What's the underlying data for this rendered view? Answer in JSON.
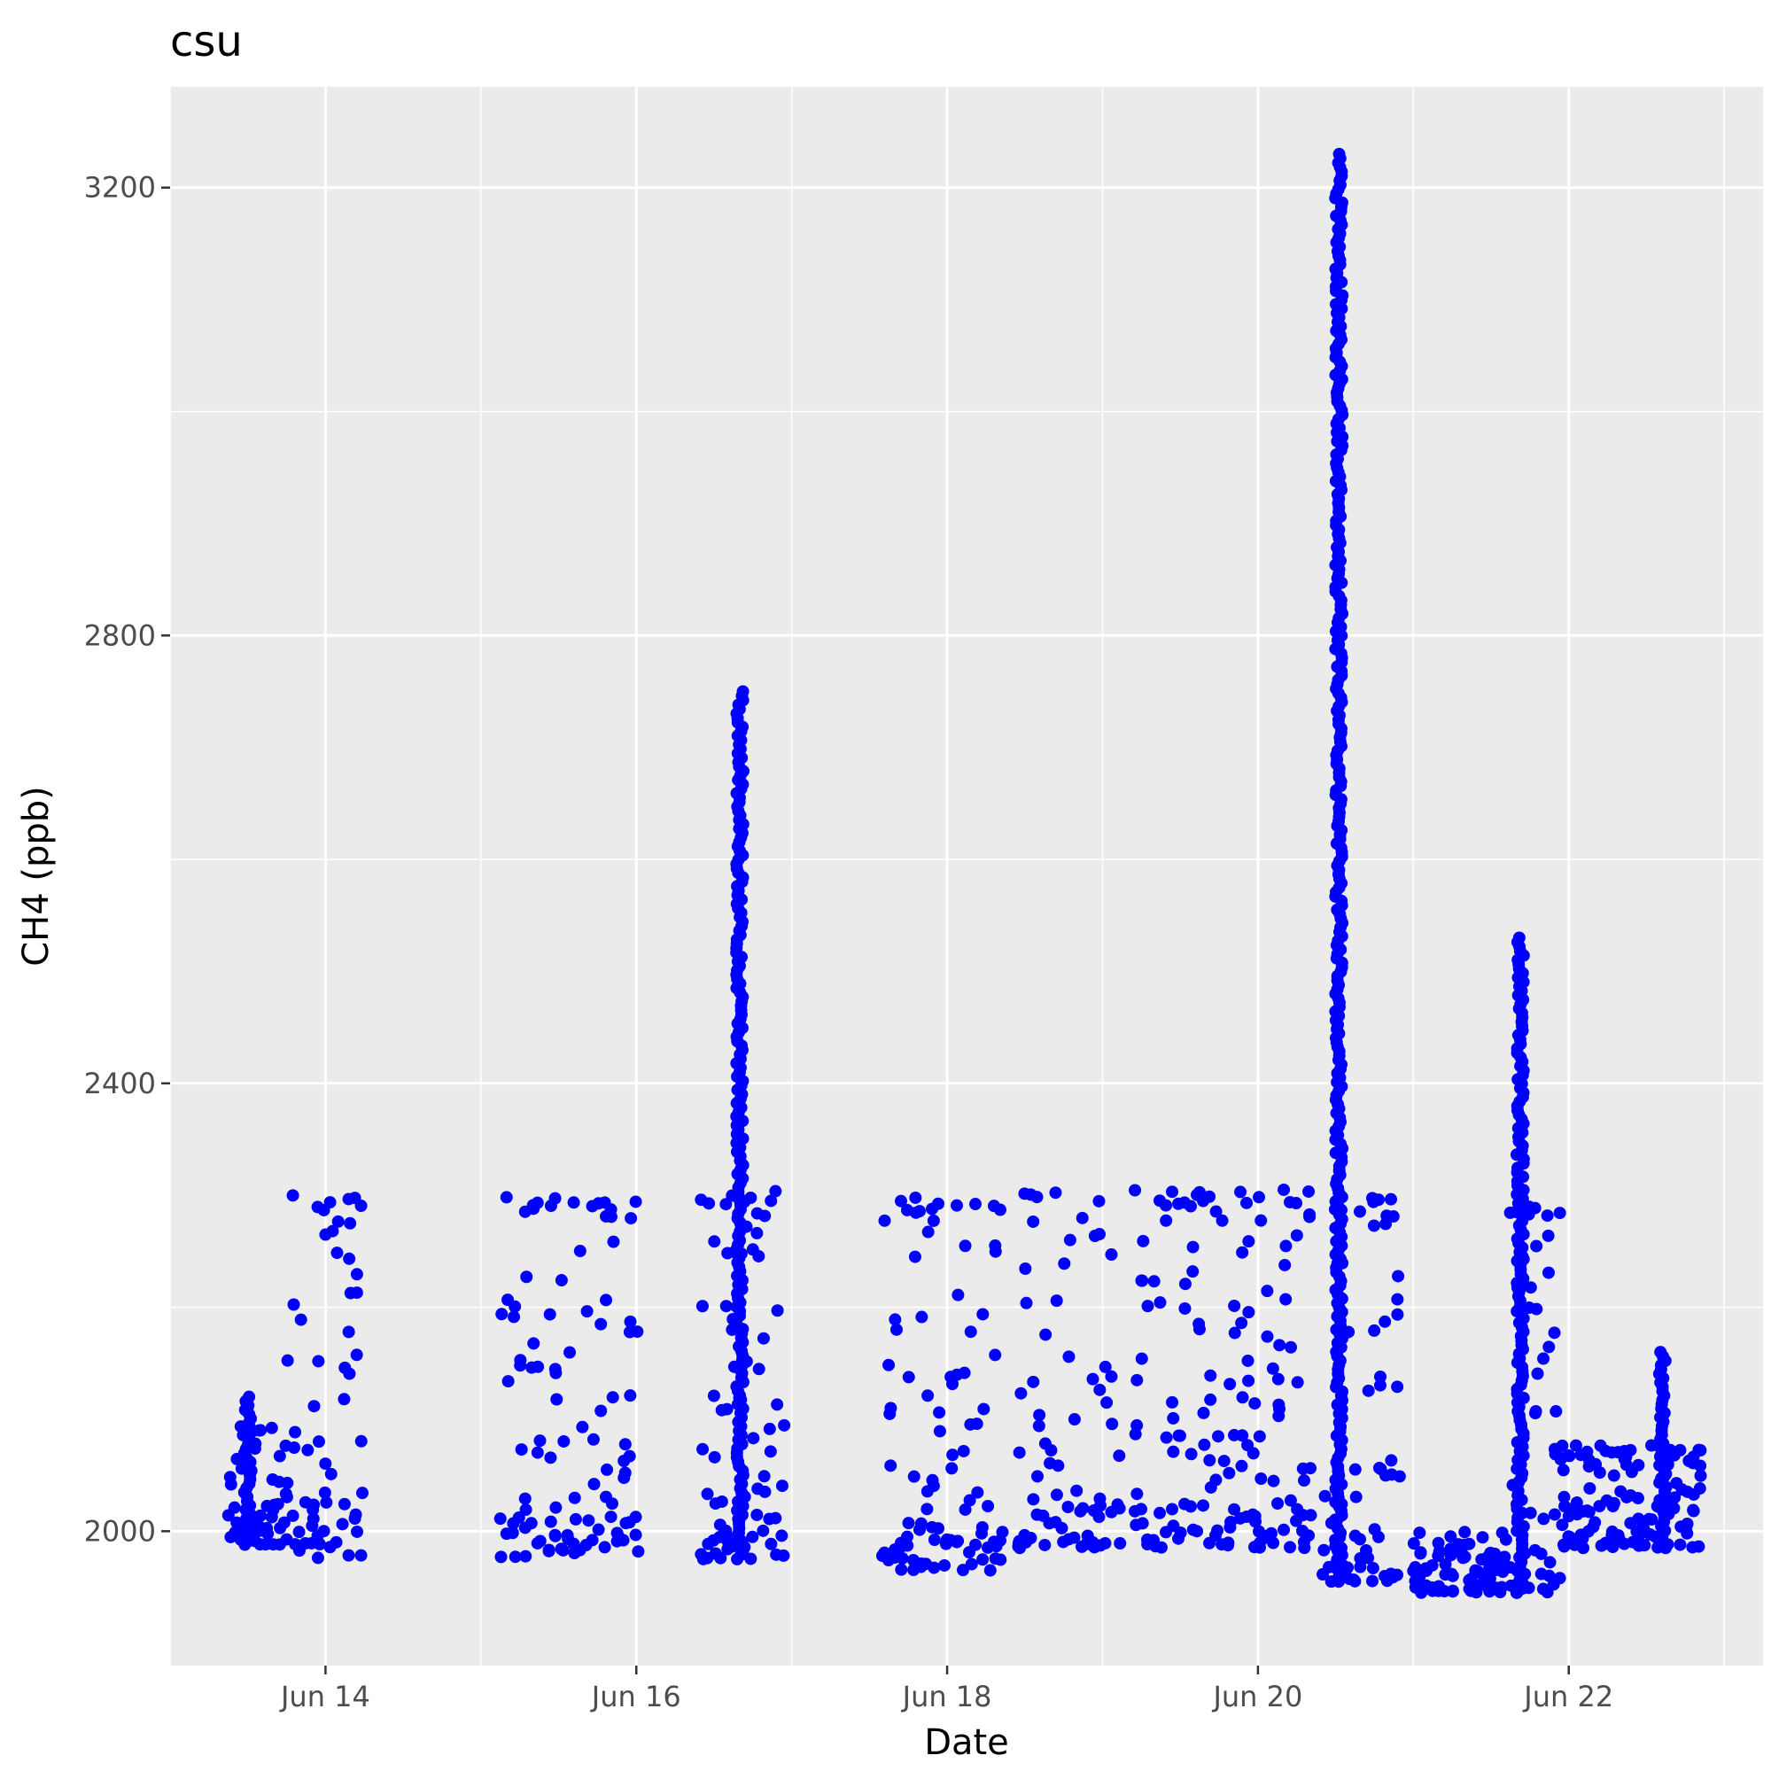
{
  "chart_data": {
    "type": "scatter",
    "title": "csu",
    "xlabel": "Date",
    "ylabel": "CH4 (ppb)",
    "x_axis": {
      "type": "date",
      "ticks": [
        "Jun 14",
        "Jun 16",
        "Jun 18",
        "Jun 20",
        "Jun 22"
      ],
      "tick_dates": [
        "2023-06-14",
        "2023-06-16",
        "2023-06-18",
        "2023-06-20",
        "2023-06-22"
      ],
      "range": [
        "2023-06-13 00:00",
        "2023-06-23 06:00"
      ]
    },
    "y_axis": {
      "ticks": [
        2000,
        2400,
        2800,
        3200
      ],
      "range": [
        1880,
        3290
      ]
    },
    "grid": true,
    "point_color": "#0000ff",
    "panel_color": "#ebebeb",
    "segments": [
      {
        "start": "2023-06-13 09:00",
        "end": "2023-06-13 18:00",
        "low": 1988,
        "high": 2100,
        "peak": 2120,
        "peak_at": "2023-06-13 12:00"
      },
      {
        "start": "2023-06-13 18:00",
        "end": "2023-06-14 06:00",
        "low": 1975,
        "high": 2300,
        "peak": 2305,
        "peak_at": "2023-06-13 22:00"
      },
      {
        "start": "2023-06-15 03:00",
        "end": "2023-06-15 09:00",
        "low": 1975,
        "high": 2300,
        "peak": 2305,
        "peak_at": "2023-06-15 04:00"
      },
      {
        "start": "2023-06-15 10:30",
        "end": "2023-06-16 00:15",
        "low": 1980,
        "high": 2300,
        "peak": 2305,
        "peak_at": "2023-06-15 18:00"
      },
      {
        "start": "2023-06-16 10:00",
        "end": "2023-06-16 23:00",
        "low": 1975,
        "high": 2305,
        "peak": 2750,
        "peak_at": "2023-06-16 16:00"
      },
      {
        "start": "2023-06-17 14:00",
        "end": "2023-06-18 09:00",
        "low": 1965,
        "high": 2300,
        "peak": 2305,
        "peak_at": "2023-06-17 20:00"
      },
      {
        "start": "2023-06-18 11:00",
        "end": "2023-06-19 03:00",
        "low": 1985,
        "high": 2305,
        "peak": 2310,
        "peak_at": "2023-06-18 20:00"
      },
      {
        "start": "2023-06-19 05:00",
        "end": "2023-06-20 08:00",
        "low": 1985,
        "high": 2305,
        "peak": 2315,
        "peak_at": "2023-06-19 22:00"
      },
      {
        "start": "2023-06-20 10:00",
        "end": "2023-06-20 22:00",
        "low": 1955,
        "high": 2300,
        "peak": 3230,
        "peak_at": "2023-06-20 12:30"
      },
      {
        "start": "2023-06-21 00:00",
        "end": "2023-06-21 14:00",
        "low": 1945,
        "high": 2000,
        "peak": 2005,
        "peak_at": "2023-06-21 04:00"
      },
      {
        "start": "2023-06-21 14:00",
        "end": "2023-06-21 23:00",
        "low": 1945,
        "high": 2290,
        "peak": 2530,
        "peak_at": "2023-06-21 16:30"
      },
      {
        "start": "2023-06-21 23:00",
        "end": "2023-06-22 21:00",
        "low": 1985,
        "high": 2080,
        "peak": 2160,
        "peak_at": "2023-06-22 14:30"
      }
    ]
  }
}
